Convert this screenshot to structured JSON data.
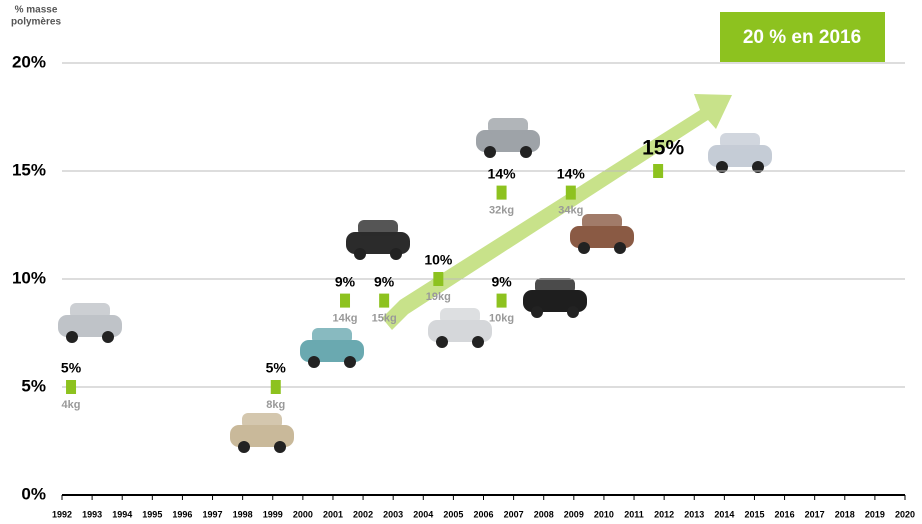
{
  "chart_data": {
    "type": "scatter",
    "y_label_lines": [
      "% masse",
      "polymères"
    ],
    "annotation": "20 % en 2016",
    "color": "#8dc21f",
    "x": [
      1992.3,
      1999.1,
      2001.4,
      2002.7,
      2004.5,
      2006.6,
      2006.6,
      2008.9,
      2011.8
    ],
    "values": [
      5,
      5,
      9,
      9,
      10,
      9,
      14,
      14,
      15
    ],
    "value_labels": [
      "5%",
      "5%",
      "9%",
      "9%",
      "10%",
      "9%",
      "14%",
      "14%",
      "15%"
    ],
    "mass_labels": [
      "4kg",
      "8kg",
      "14kg",
      "15kg",
      "19kg",
      "10kg",
      "32kg",
      "34kg",
      null
    ],
    "xlim": [
      1992,
      2020
    ],
    "xticks": [
      1992,
      1993,
      1994,
      1995,
      1996,
      1997,
      1998,
      1999,
      2000,
      2001,
      2002,
      2003,
      2004,
      2005,
      2006,
      2007,
      2008,
      2009,
      2010,
      2011,
      2012,
      2013,
      2014,
      2015,
      2016,
      2017,
      2018,
      2019,
      2020
    ],
    "ylim": [
      0,
      20
    ],
    "yticks": [
      {
        "value": 0,
        "label": "0%"
      },
      {
        "value": 5,
        "label": "5%"
      },
      {
        "value": 10,
        "label": "10%"
      },
      {
        "value": 15,
        "label": "15%"
      },
      {
        "value": 20,
        "label": "20%"
      }
    ],
    "grid": true
  }
}
